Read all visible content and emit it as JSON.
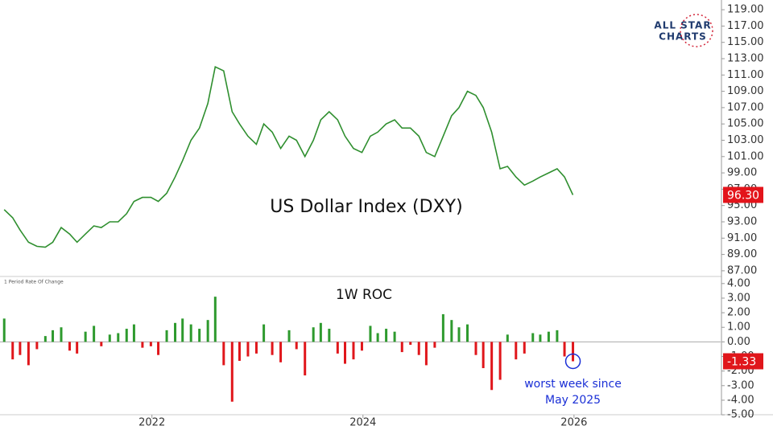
{
  "chart_data": [
    {
      "type": "line",
      "title": "US Dollar Index (DXY)",
      "color": "#2f8f2f",
      "label_color": "#e3141b",
      "x": [
        2020.6,
        2020.68,
        2020.75,
        2020.83,
        2020.91,
        2020.99,
        2021.06,
        2021.14,
        2021.22,
        2021.29,
        2021.37,
        2021.45,
        2021.52,
        2021.6,
        2021.68,
        2021.76,
        2021.83,
        2021.91,
        2021.99,
        2022.06,
        2022.14,
        2022.22,
        2022.29,
        2022.37,
        2022.45,
        2022.53,
        2022.6,
        2022.68,
        2022.76,
        2022.83,
        2022.91,
        2022.99,
        2023.06,
        2023.14,
        2023.22,
        2023.3,
        2023.37,
        2023.45,
        2023.53,
        2023.6,
        2023.68,
        2023.76,
        2023.83,
        2023.91,
        2023.99,
        2024.07,
        2024.14,
        2024.22,
        2024.3,
        2024.37,
        2024.45,
        2024.53,
        2024.6,
        2024.68,
        2024.76,
        2024.84,
        2024.91,
        2024.99,
        2025.07,
        2025.14,
        2025.22,
        2025.3,
        2025.37,
        2025.45,
        2025.53,
        2025.61,
        2025.68,
        2025.76,
        2025.84,
        2025.91,
        2025.99
      ],
      "values": [
        94.5,
        93.5,
        92,
        90.5,
        90,
        89.9,
        90.5,
        92.3,
        91.5,
        90.5,
        91.5,
        92.5,
        92.3,
        93,
        93,
        94,
        95.5,
        96,
        96,
        95.5,
        96.5,
        98.5,
        100.5,
        103,
        104.5,
        107.5,
        112,
        111.5,
        106.5,
        105,
        103.5,
        102.5,
        105,
        104,
        102,
        103.5,
        103,
        101,
        103,
        105.5,
        106.5,
        105.5,
        103.5,
        102,
        101.5,
        103.5,
        104,
        105,
        105.5,
        104.5,
        104.5,
        103.5,
        101.5,
        101,
        103.5,
        106,
        107,
        109,
        108.5,
        107,
        104,
        99.5,
        99.8,
        98.5,
        97.5,
        98,
        98.5,
        99,
        99.5,
        98.5,
        96.3
      ],
      "last_value": {
        "value": 96.3,
        "label": "96.30"
      },
      "xlim": [
        2020.56,
        2027.39
      ],
      "ylim": [
        86.4,
        119.7
      ],
      "yticks": [
        {
          "value": 87,
          "label": "87.00"
        },
        {
          "value": 89,
          "label": "89.00"
        },
        {
          "value": 91,
          "label": "91.00"
        },
        {
          "value": 93,
          "label": "93.00"
        },
        {
          "value": 95,
          "label": "95.00"
        },
        {
          "value": 97,
          "label": "97.00"
        },
        {
          "value": 99,
          "label": "99.00"
        },
        {
          "value": 101,
          "label": "101.00"
        },
        {
          "value": 103,
          "label": "103.00"
        },
        {
          "value": 105,
          "label": "105.00"
        },
        {
          "value": 107,
          "label": "107.00"
        },
        {
          "value": 109,
          "label": "109.00"
        },
        {
          "value": 111,
          "label": "111.00"
        },
        {
          "value": 113,
          "label": "113.00"
        },
        {
          "value": 115,
          "label": "115.00"
        },
        {
          "value": 117,
          "label": "117.00"
        },
        {
          "value": 119,
          "label": "119.00"
        }
      ],
      "logo": [
        "ALL STAR",
        "CHARTS"
      ]
    },
    {
      "type": "bar",
      "title": "1W ROC",
      "subtitle": "1 Period Rate Of Change",
      "up_color": "#2e9a2e",
      "down_color": "#e0161b",
      "x": [
        2020.6,
        2020.68,
        2020.75,
        2020.83,
        2020.91,
        2020.99,
        2021.06,
        2021.14,
        2021.22,
        2021.29,
        2021.37,
        2021.45,
        2021.52,
        2021.6,
        2021.68,
        2021.76,
        2021.83,
        2021.91,
        2021.99,
        2022.06,
        2022.14,
        2022.22,
        2022.29,
        2022.37,
        2022.45,
        2022.53,
        2022.6,
        2022.68,
        2022.76,
        2022.83,
        2022.91,
        2022.99,
        2023.06,
        2023.14,
        2023.22,
        2023.3,
        2023.37,
        2023.45,
        2023.53,
        2023.6,
        2023.68,
        2023.76,
        2023.83,
        2023.91,
        2023.99,
        2024.07,
        2024.14,
        2024.22,
        2024.3,
        2024.37,
        2024.45,
        2024.53,
        2024.6,
        2024.68,
        2024.76,
        2024.84,
        2024.91,
        2024.99,
        2025.07,
        2025.14,
        2025.22,
        2025.3,
        2025.37,
        2025.45,
        2025.53,
        2025.61,
        2025.68,
        2025.76,
        2025.84,
        2025.91,
        2025.99
      ],
      "values": [
        1.6,
        -1.2,
        -0.9,
        -1.6,
        -0.5,
        0.4,
        0.8,
        1.0,
        -0.6,
        -0.8,
        0.7,
        1.1,
        -0.3,
        0.5,
        0.6,
        0.9,
        1.2,
        -0.4,
        -0.3,
        -0.9,
        0.8,
        1.3,
        1.6,
        1.2,
        0.9,
        1.5,
        3.1,
        -1.6,
        -4.1,
        -1.3,
        -1.0,
        -0.8,
        1.2,
        -0.9,
        -1.4,
        0.8,
        -0.5,
        -2.3,
        1.0,
        1.3,
        0.9,
        -0.8,
        -1.5,
        -1.2,
        -0.6,
        1.1,
        0.6,
        0.9,
        0.7,
        -0.7,
        -0.2,
        -0.9,
        -1.6,
        -0.4,
        1.9,
        1.5,
        1.0,
        1.2,
        -0.9,
        -1.8,
        -3.3,
        -2.6,
        0.5,
        -1.2,
        -0.8,
        0.6,
        0.5,
        0.7,
        0.8,
        -1.0,
        -1.33
      ],
      "last_value": {
        "value": -1.33,
        "label": "-1.33"
      },
      "annotation": [
        "worst week since",
        "May 2025"
      ],
      "xlim": [
        2020.56,
        2027.39
      ],
      "ylim": [
        -5.05,
        4.1
      ],
      "xticks": [
        2022,
        2024,
        2026
      ],
      "yticks": [
        {
          "value": -5,
          "label": "-5.00"
        },
        {
          "value": -4,
          "label": "-4.00"
        },
        {
          "value": -3,
          "label": "-3.00"
        },
        {
          "value": -2,
          "label": "-2.00"
        },
        {
          "value": -1,
          "label": "-1.00"
        },
        {
          "value": 0,
          "label": "0.00"
        },
        {
          "value": 1,
          "label": "1.00"
        },
        {
          "value": 2,
          "label": "2.00"
        },
        {
          "value": 3,
          "label": "3.00"
        },
        {
          "value": 4,
          "label": "4.00"
        }
      ]
    }
  ]
}
